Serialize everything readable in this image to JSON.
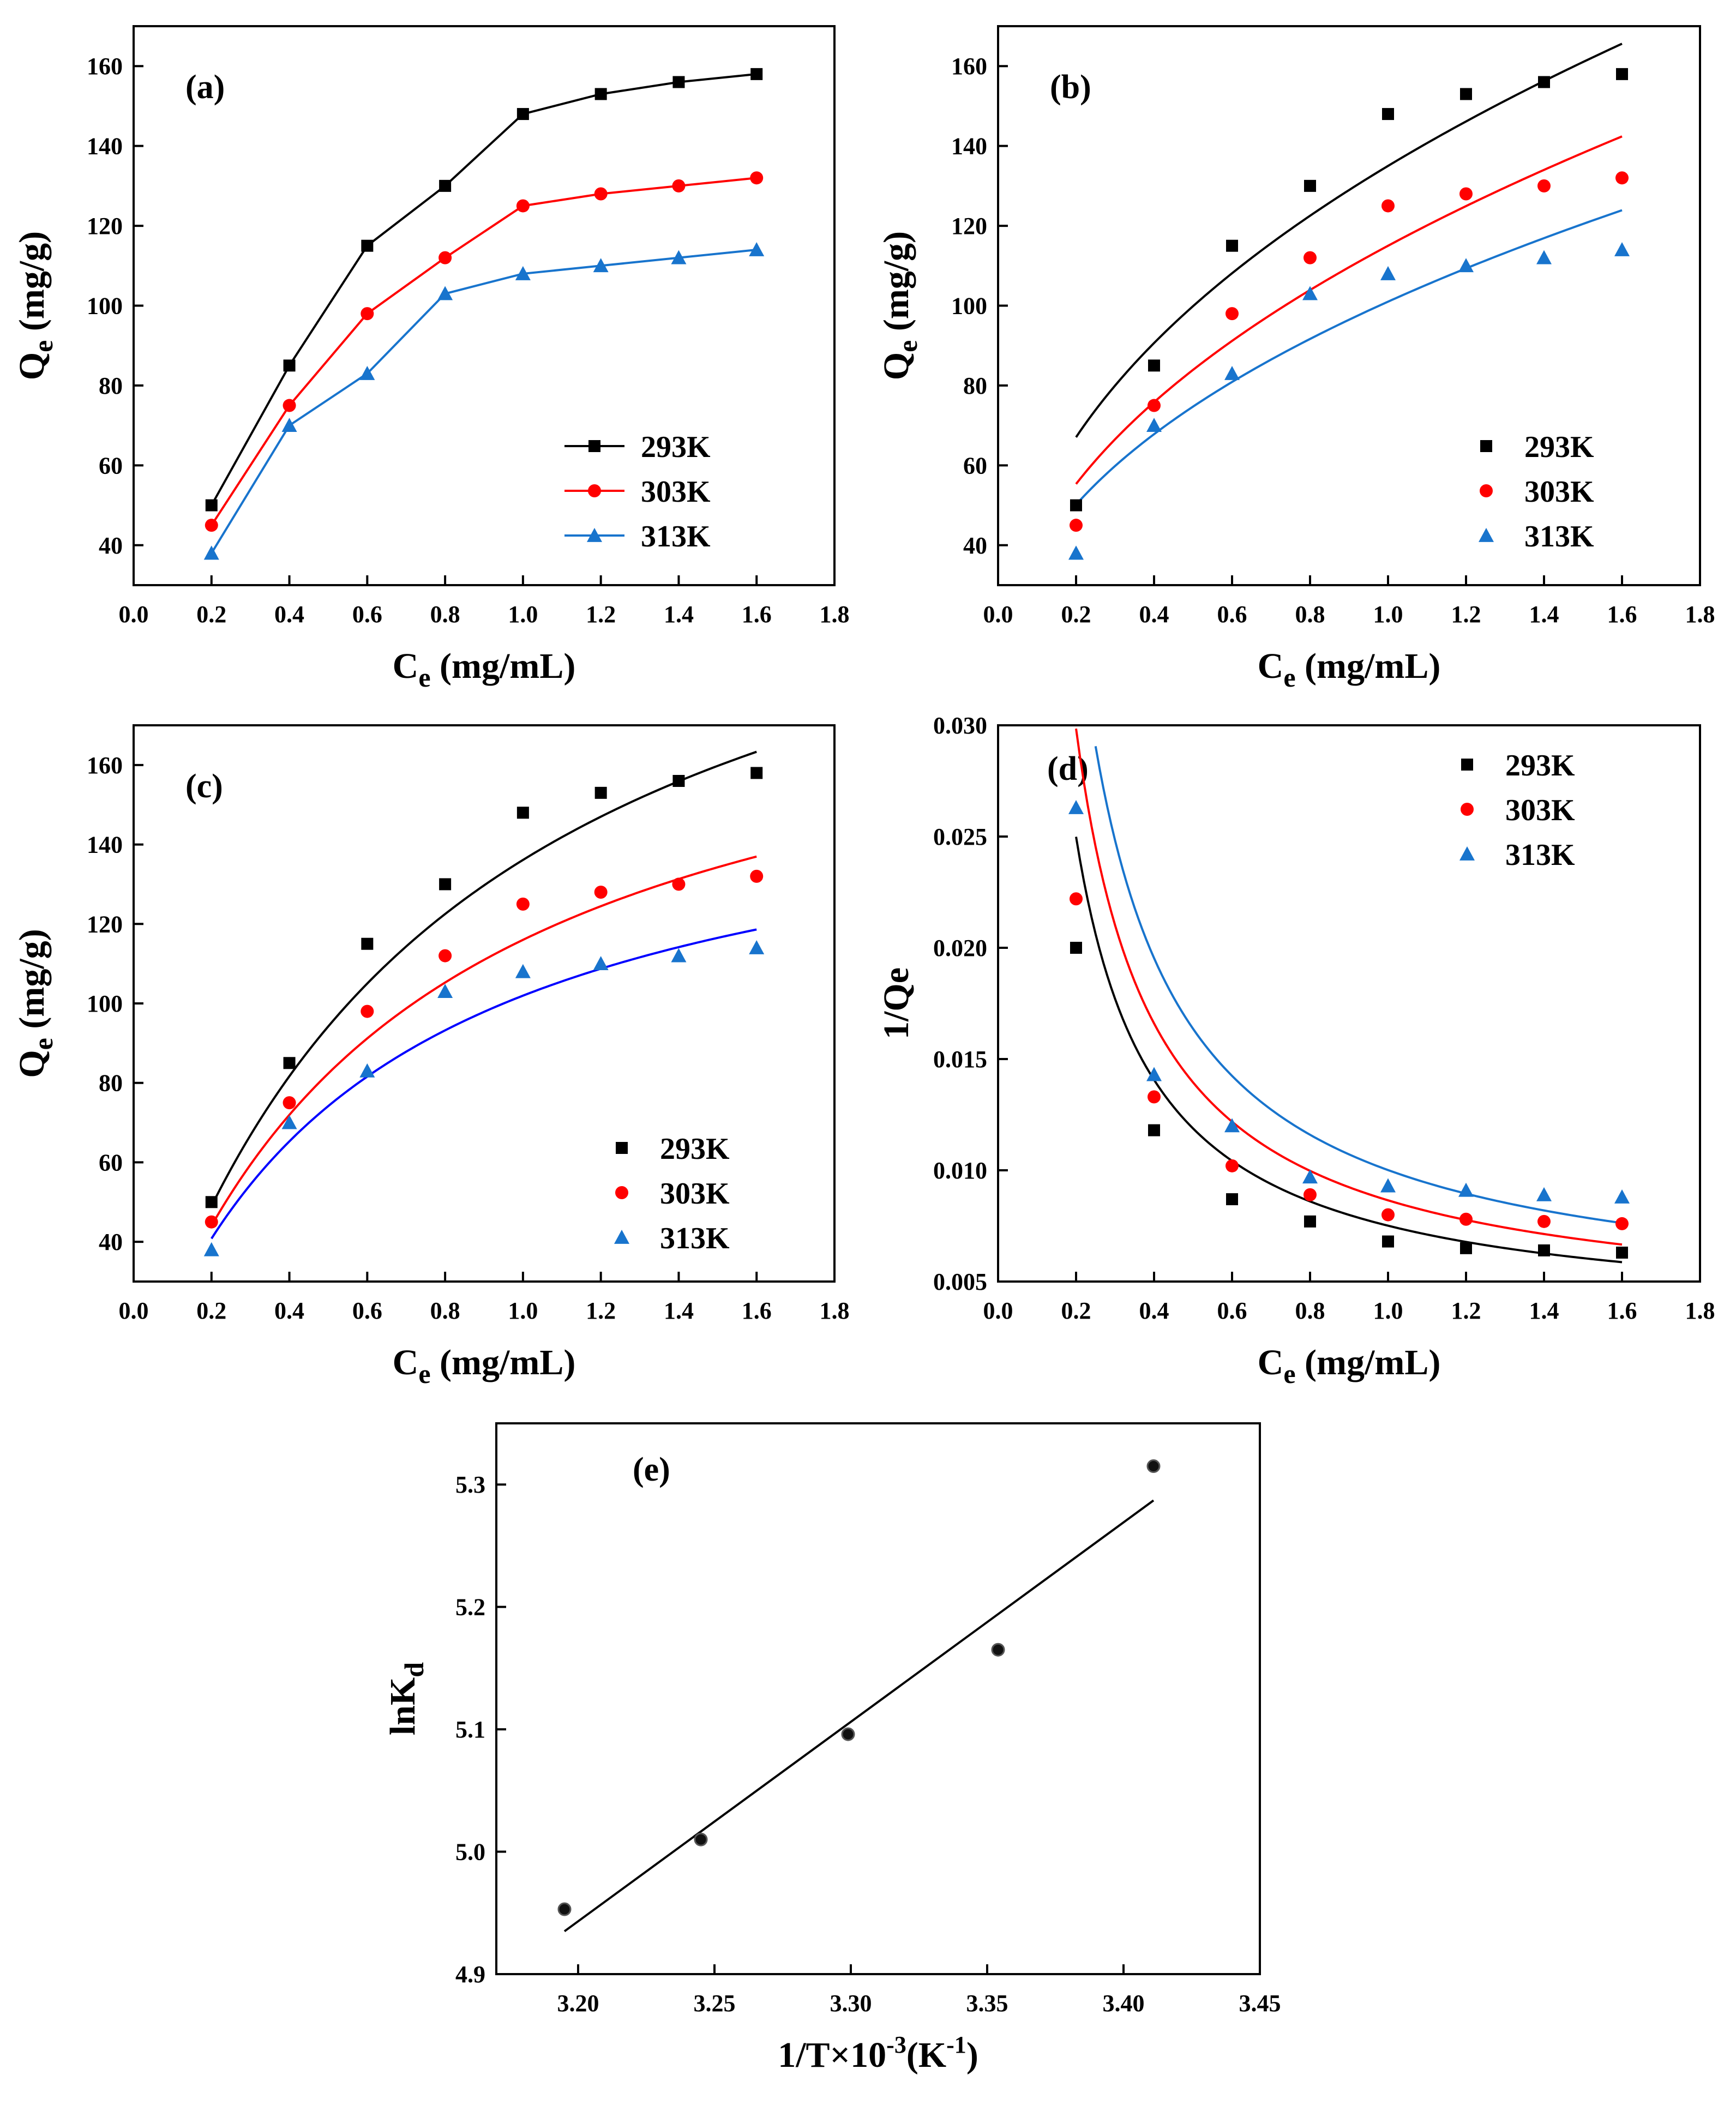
{
  "colors": {
    "293K": "#000000",
    "303K": "#ff0000",
    "313K": "#1874cd",
    "fit_c_313K": "#0000ff"
  },
  "chart_data": [
    {
      "panel": "(a)",
      "type": "line",
      "xlabel_main": "C",
      "xlabel_sub": "e",
      "xlabel_rest": " (mg/mL)",
      "ylabel_main": "Q",
      "ylabel_sub": "e",
      "ylabel_rest": " (mg/g)",
      "xlim": [
        0.0,
        1.8
      ],
      "ylim": [
        30,
        170
      ],
      "xticks": [
        "0.0",
        "0.2",
        "0.4",
        "0.6",
        "0.8",
        "1.0",
        "1.2",
        "1.4",
        "1.6",
        "1.8"
      ],
      "yticks": [
        "40",
        "60",
        "80",
        "100",
        "120",
        "140",
        "160"
      ],
      "legend_position": "bottom-right",
      "legend_style": "line-marker",
      "series": [
        {
          "name": "293K",
          "marker": "square",
          "x": [
            0.2,
            0.4,
            0.6,
            0.8,
            1.0,
            1.2,
            1.4,
            1.6
          ],
          "y": [
            50,
            85,
            115,
            130,
            148,
            153,
            156,
            158
          ]
        },
        {
          "name": "303K",
          "marker": "circle",
          "x": [
            0.2,
            0.4,
            0.6,
            0.8,
            1.0,
            1.2,
            1.4,
            1.6
          ],
          "y": [
            45,
            75,
            98,
            112,
            125,
            128,
            130,
            132
          ]
        },
        {
          "name": "313K",
          "marker": "triangle",
          "x": [
            0.2,
            0.4,
            0.6,
            0.8,
            1.0,
            1.2,
            1.4,
            1.6
          ],
          "y": [
            38,
            70,
            83,
            103,
            108,
            110,
            112,
            114
          ]
        }
      ]
    },
    {
      "panel": "(b)",
      "type": "scatter",
      "xlabel_main": "C",
      "xlabel_sub": "e",
      "xlabel_rest": " (mg/mL)",
      "ylabel_main": "Q",
      "ylabel_sub": "e",
      "ylabel_rest": " (mg/g)",
      "xlim": [
        0.0,
        1.8
      ],
      "ylim": [
        30,
        170
      ],
      "xticks": [
        "0.0",
        "0.2",
        "0.4",
        "0.6",
        "0.8",
        "1.0",
        "1.2",
        "1.4",
        "1.6",
        "1.8"
      ],
      "yticks": [
        "40",
        "60",
        "80",
        "100",
        "120",
        "140",
        "160"
      ],
      "legend_position": "bottom-right",
      "legend_style": "marker",
      "fit_model": "freundlich",
      "series": [
        {
          "name": "293K",
          "marker": "square",
          "x": [
            0.2,
            0.4,
            0.6,
            0.8,
            1.0,
            1.2,
            1.4,
            1.6
          ],
          "y": [
            50,
            85,
            115,
            130,
            148,
            153,
            156,
            158
          ],
          "fit": {
            "K": 135,
            "n": 2.3
          }
        },
        {
          "name": "303K",
          "marker": "circle",
          "x": [
            0.2,
            0.4,
            0.6,
            0.8,
            1.0,
            1.2,
            1.4,
            1.6
          ],
          "y": [
            45,
            75,
            98,
            112,
            125,
            128,
            130,
            132
          ],
          "fit": {
            "K": 115,
            "n": 2.2
          }
        },
        {
          "name": "313K",
          "marker": "triangle",
          "x": [
            0.2,
            0.4,
            0.6,
            0.8,
            1.0,
            1.2,
            1.4,
            1.6
          ],
          "y": [
            38,
            70,
            83,
            103,
            108,
            110,
            112,
            114
          ],
          "fit": {
            "K": 101,
            "n": 2.3
          }
        }
      ]
    },
    {
      "panel": "(c)",
      "type": "scatter",
      "xlabel_main": "C",
      "xlabel_sub": "e",
      "xlabel_rest": " (mg/mL)",
      "ylabel_main": "Q",
      "ylabel_sub": "e",
      "ylabel_rest": " (mg/g)",
      "xlim": [
        0.0,
        1.8
      ],
      "ylim": [
        30,
        170
      ],
      "xticks": [
        "0.0",
        "0.2",
        "0.4",
        "0.6",
        "0.8",
        "1.0",
        "1.2",
        "1.4",
        "1.6",
        "1.8"
      ],
      "yticks": [
        "40",
        "60",
        "80",
        "100",
        "120",
        "140",
        "160"
      ],
      "legend_position": "bottom-right",
      "legend_style": "marker",
      "fit_model": "langmuir",
      "series": [
        {
          "name": "293K",
          "marker": "square",
          "x": [
            0.2,
            0.4,
            0.6,
            0.8,
            1.0,
            1.2,
            1.4,
            1.6
          ],
          "y": [
            50,
            85,
            115,
            130,
            148,
            153,
            156,
            158
          ],
          "fit": {
            "Qm": 245,
            "K": 1.25
          }
        },
        {
          "name": "303K",
          "marker": "circle",
          "x": [
            0.2,
            0.4,
            0.6,
            0.8,
            1.0,
            1.2,
            1.4,
            1.6
          ],
          "y": [
            45,
            75,
            98,
            112,
            125,
            128,
            130,
            132
          ],
          "fit": {
            "Qm": 196,
            "K": 1.45
          }
        },
        {
          "name": "313K",
          "marker": "triangle",
          "x": [
            0.2,
            0.4,
            0.6,
            0.8,
            1.0,
            1.2,
            1.4,
            1.6
          ],
          "y": [
            38,
            70,
            83,
            103,
            108,
            110,
            112,
            114
          ],
          "fit": {
            "Qm": 163,
            "K": 1.67
          }
        }
      ]
    },
    {
      "panel": "(d)",
      "type": "scatter",
      "xlabel_main": "C",
      "xlabel_sub": "e",
      "xlabel_rest": " (mg/mL)",
      "ylabel_main": "1/Qe",
      "ylabel_sub": "",
      "ylabel_rest": "",
      "xlim": [
        0.0,
        1.8
      ],
      "ylim": [
        0.005,
        0.03
      ],
      "xticks": [
        "0.0",
        "0.2",
        "0.4",
        "0.6",
        "0.8",
        "1.0",
        "1.2",
        "1.4",
        "1.6",
        "1.8"
      ],
      "yticks": [
        "0.005",
        "0.010",
        "0.015",
        "0.020",
        "0.025",
        "0.030"
      ],
      "legend_position": "top-right",
      "legend_style": "marker",
      "fit_model": "reciprocal",
      "series": [
        {
          "name": "293K",
          "marker": "square",
          "x": [
            0.2,
            0.4,
            0.6,
            0.8,
            1.0,
            1.2,
            1.4,
            1.6
          ],
          "y": [
            0.02,
            0.0118,
            0.0087,
            0.0077,
            0.0068,
            0.0065,
            0.0064,
            0.0063
          ],
          "fit": {
            "a": 0.00437,
            "b": 0.00314
          }
        },
        {
          "name": "303K",
          "marker": "circle",
          "x": [
            0.2,
            0.4,
            0.6,
            0.8,
            1.0,
            1.2,
            1.4,
            1.6
          ],
          "y": [
            0.0222,
            0.0133,
            0.0102,
            0.0089,
            0.008,
            0.0078,
            0.0077,
            0.0076
          ],
          "fit": {
            "a": 0.0053,
            "b": 0.00335
          }
        },
        {
          "name": "313K",
          "marker": "triangle",
          "x": [
            0.2,
            0.4,
            0.6,
            0.8,
            1.0,
            1.2,
            1.4,
            1.6
          ],
          "y": [
            0.0263,
            0.0143,
            0.012,
            0.0097,
            0.0093,
            0.0091,
            0.0089,
            0.0088
          ],
          "fit": {
            "a": 0.00635,
            "b": 0.00366
          }
        }
      ]
    },
    {
      "panel": "(e)",
      "type": "scatter",
      "xlabel_main": "1/T×10",
      "xlabel_sup": "-3",
      "xlabel_rest": "(K",
      "xlabel_sup2": "-1",
      "xlabel_end": ")",
      "ylabel_main": "lnK",
      "ylabel_sub": "d",
      "ylabel_rest": "",
      "xlim": [
        3.17,
        3.45
      ],
      "ylim": [
        4.9,
        5.35
      ],
      "xticks": [
        "3.20",
        "3.25",
        "3.30",
        "3.35",
        "3.40",
        "3.45"
      ],
      "yticks": [
        "4.9",
        "5.0",
        "5.1",
        "5.2",
        "5.3"
      ],
      "legend_position": "none",
      "series": [
        {
          "name": "lnKd",
          "marker": "circle",
          "x": [
            3.195,
            3.245,
            3.299,
            3.354,
            3.411
          ],
          "y": [
            4.953,
            5.01,
            5.096,
            5.165,
            5.315
          ],
          "fit": {
            "x0": 3.195,
            "y0": 4.935,
            "x1": 3.411,
            "y1": 5.287
          }
        }
      ]
    }
  ]
}
